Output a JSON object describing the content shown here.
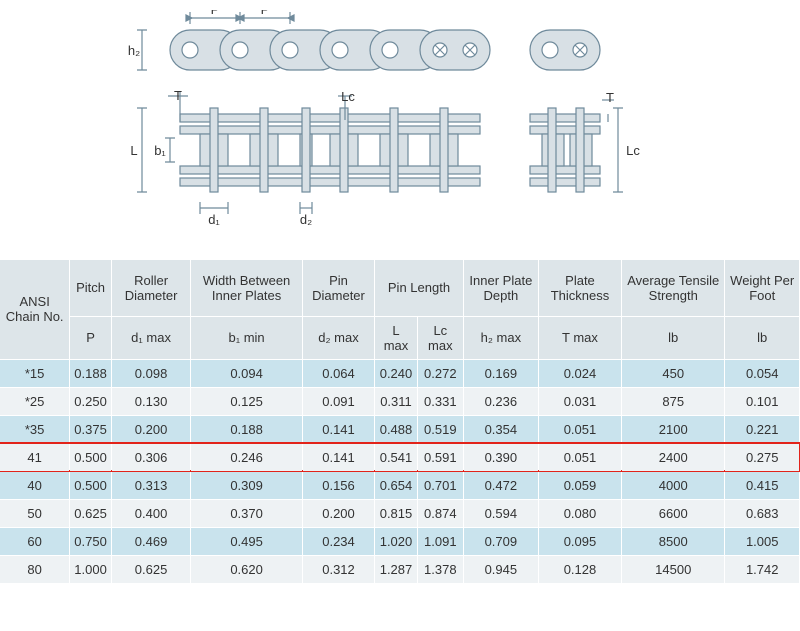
{
  "diagram": {
    "labels": {
      "h2": "h₂",
      "P": "P",
      "T": "T",
      "Lc": "Lc",
      "L": "L",
      "b1": "b₁",
      "d1": "d₁",
      "d2": "d₂"
    },
    "stroke_color": "#6f8a9b",
    "fill_color": "#d8e0e5",
    "bg_color": "#ffffff"
  },
  "table": {
    "columns": [
      {
        "label": "ANSI Chain No.",
        "sub": "",
        "span": 1
      },
      {
        "label": "Pitch",
        "sub": "P",
        "span": 1
      },
      {
        "label": "Roller Diameter",
        "sub": "d₁ max",
        "span": 1
      },
      {
        "label": "Width Between Inner Plates",
        "sub": "b₁ min",
        "span": 1
      },
      {
        "label": "Pin Diameter",
        "sub": "d₂ max",
        "span": 1
      },
      {
        "label": "Pin Length",
        "sub": "L max|Lc max",
        "span": 2
      },
      {
        "label": "Inner Plate Depth",
        "sub": "h₂ max",
        "span": 1
      },
      {
        "label": "Plate Thickness",
        "sub": "T max",
        "span": 1
      },
      {
        "label": "Average Tensile Strength",
        "sub": "lb",
        "span": 1
      },
      {
        "label": "Weight Per Foot",
        "sub": "lb",
        "span": 1
      }
    ],
    "rows": [
      [
        "*15",
        "0.188",
        "0.098",
        "0.094",
        "0.064",
        "0.240",
        "0.272",
        "0.169",
        "0.024",
        "450",
        "0.054"
      ],
      [
        "*25",
        "0.250",
        "0.130",
        "0.125",
        "0.091",
        "0.311",
        "0.331",
        "0.236",
        "0.031",
        "875",
        "0.101"
      ],
      [
        "*35",
        "0.375",
        "0.200",
        "0.188",
        "0.141",
        "0.488",
        "0.519",
        "0.354",
        "0.051",
        "2100",
        "0.221"
      ],
      [
        "41",
        "0.500",
        "0.306",
        "0.246",
        "0.141",
        "0.541",
        "0.591",
        "0.390",
        "0.051",
        "2400",
        "0.275"
      ],
      [
        "40",
        "0.500",
        "0.313",
        "0.309",
        "0.156",
        "0.654",
        "0.701",
        "0.472",
        "0.059",
        "4000",
        "0.415"
      ],
      [
        "50",
        "0.625",
        "0.400",
        "0.370",
        "0.200",
        "0.815",
        "0.874",
        "0.594",
        "0.080",
        "6600",
        "0.683"
      ],
      [
        "60",
        "0.750",
        "0.469",
        "0.495",
        "0.234",
        "1.020",
        "1.091",
        "0.709",
        "0.095",
        "8500",
        "1.005"
      ],
      [
        "80",
        "1.000",
        "0.625",
        "0.620",
        "0.312",
        "1.287",
        "1.378",
        "0.945",
        "0.128",
        "14500",
        "1.742"
      ]
    ],
    "highlight_row_index": 3,
    "header_bg": "#dde5e9",
    "row_odd_bg": "#c9e3ed",
    "row_even_bg": "#eef2f4",
    "highlight_color": "#e2231a",
    "text_color": "#333333"
  }
}
